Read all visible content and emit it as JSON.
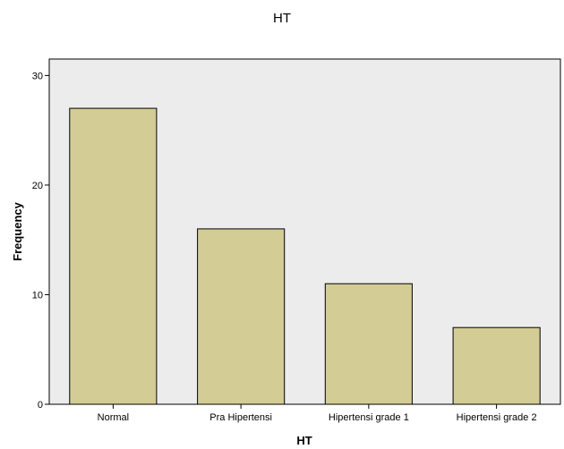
{
  "chart_data": {
    "type": "bar",
    "title": "HT",
    "xlabel": "HT",
    "ylabel": "Frequency",
    "categories": [
      "Normal",
      "Pra Hipertensi",
      "Hipertensi grade 1",
      "Hipertensi grade 2"
    ],
    "values": [
      27,
      16,
      11,
      7
    ],
    "ylim": [
      0,
      31.5
    ],
    "yticks": [
      0,
      10,
      20,
      30
    ],
    "grid": false,
    "colors": {
      "bar_fill": "#d3cd95",
      "bar_stroke": "#000000",
      "plot_background": "#ececec",
      "page_background": "#ffffff"
    }
  }
}
